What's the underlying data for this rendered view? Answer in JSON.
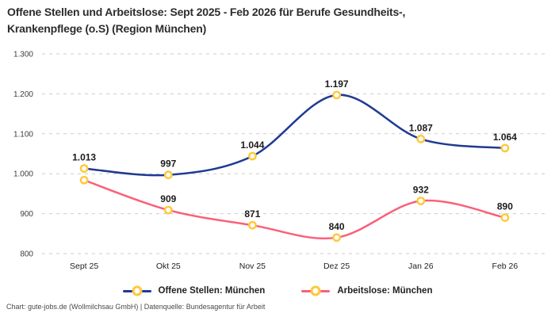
{
  "header": {
    "title_lines": [
      "Offene Stellen und Arbeitslose: Sept 2025 - Feb 2026 für Berufe Gesundheits-,",
      "Krankenpflege (o.S) (Region München)"
    ]
  },
  "chart_data": {
    "type": "line",
    "title": "Offene Stellen und Arbeitslose: Sept 2025 - Feb 2026 für Berufe Gesundheits-, Krankenpflege (o.S) (Region München)",
    "categories": [
      "Sept 25",
      "Okt 25",
      "Nov 25",
      "Dez 25",
      "Jan 26",
      "Feb 26"
    ],
    "series": [
      {
        "name": "Offene Stellen: München",
        "color": "#1f3a93",
        "values": [
          1013,
          997,
          1044,
          1197,
          1087,
          1064
        ],
        "labels": [
          "1.013",
          "997",
          "1.044",
          "1.197",
          "1.087",
          "1.064"
        ]
      },
      {
        "name": "Arbeitslose: München",
        "color": "#fa6078",
        "values": [
          984,
          909,
          871,
          840,
          932,
          890
        ],
        "labels": [
          "",
          "909",
          "871",
          "840",
          "932",
          "890"
        ]
      }
    ],
    "marker": {
      "fill": "#ffffff",
      "stroke": "#ffc83c"
    },
    "ylim": [
      800,
      1300
    ],
    "yticks": {
      "values": [
        800,
        900,
        1000,
        1100,
        1200,
        1300
      ],
      "labels": [
        "800",
        "900",
        "1.000",
        "1.100",
        "1.200",
        "1.300"
      ]
    },
    "grid": "horizontal-dashed",
    "grid_color": "#cbcbcb",
    "tick_color": "#3c3c3c",
    "data_label_color": "#1b1b1b",
    "legend_position": "bottom",
    "curve": "smooth"
  },
  "footer": {
    "text": "Chart: gute-jobs.de (Wollmilchsau GmbH) | Datenquelle: Bundesagentur für Arbeit"
  }
}
